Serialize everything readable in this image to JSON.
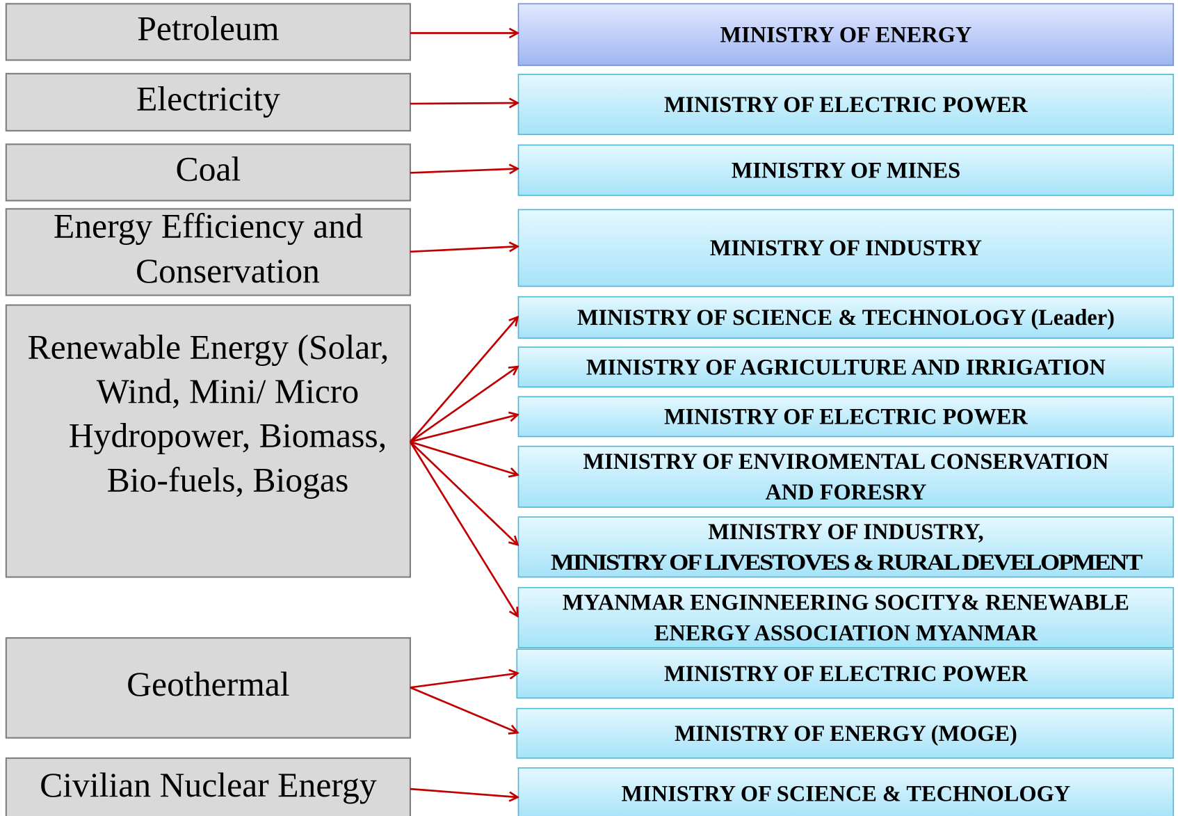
{
  "sectors": [
    {
      "label": [
        "Petroleum"
      ],
      "ministries": [
        {
          "label": [
            "MINISTRY OF ENERGY"
          ]
        }
      ]
    },
    {
      "label": [
        "Electricity"
      ],
      "ministries": [
        {
          "label": [
            "MINISTRY OF ELECTRIC POWER"
          ]
        }
      ]
    },
    {
      "label": [
        "Coal"
      ],
      "ministries": [
        {
          "label": [
            "MINISTRY OF MINES"
          ]
        }
      ]
    },
    {
      "label": [
        "Energy Efficiency and",
        "Conservation"
      ],
      "ministries": [
        {
          "label": [
            "MINISTRY OF INDUSTRY"
          ]
        }
      ]
    },
    {
      "label": [
        "Renewable Energy (Solar,",
        "Wind, Mini/ Micro",
        "Hydropower, Biomass,",
        "Bio-fuels, Biogas"
      ],
      "ministries": [
        {
          "label": [
            "MINISTRY OF SCIENCE & TECHNOLOGY (Leader)"
          ]
        },
        {
          "label": [
            "MINISTRY OF AGRICULTURE AND IRRIGATION"
          ]
        },
        {
          "label": [
            "MINISTRY OF ELECTRIC POWER"
          ]
        },
        {
          "label": [
            "MINISTRY OF ENVIROMENTAL CONSERVATION",
            "AND FORESRY"
          ]
        },
        {
          "label": [
            "MINISTRY OF INDUSTRY,",
            "MINISTRY OF LIVESTOVES  & RURAL DEVELOPMENT"
          ]
        },
        {
          "label": [
            "MYANMAR ENGINNEERING SOCITY& RENEWABLE",
            "ENERGY ASSOCIATION MYANMAR"
          ]
        }
      ]
    },
    {
      "label": [
        "Geothermal"
      ],
      "ministries": [
        {
          "label": [
            "MINISTRY OF ELECTRIC POWER"
          ]
        },
        {
          "label": [
            "MINISTRY OF ENERGY (MOGE)"
          ]
        }
      ]
    },
    {
      "label": [
        "Civilian Nuclear Energy"
      ],
      "ministries": [
        {
          "label": [
            "MINISTRY OF SCIENCE & TECHNOLOGY"
          ]
        }
      ]
    }
  ]
}
